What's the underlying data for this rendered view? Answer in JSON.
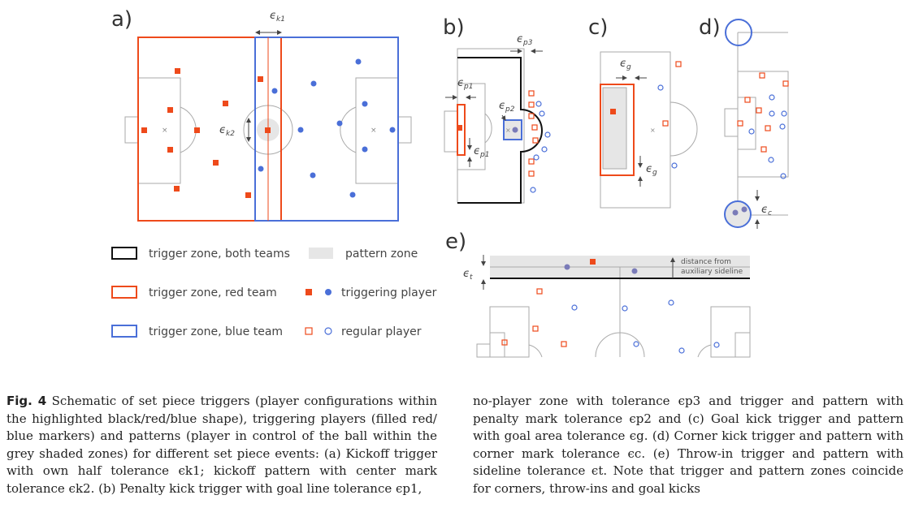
{
  "figure": {
    "panel_labels": [
      "a)",
      "b)",
      "c)",
      "d)",
      "e)"
    ],
    "tolerances": {
      "k1": "ϵ",
      "k1_sub": "k1",
      "k2": "ϵ",
      "k2_sub": "k2",
      "p1": "ϵ",
      "p1_sub": "p1",
      "p2": "ϵ",
      "p2_sub": "p2",
      "p3": "ϵ",
      "p3_sub": "p3",
      "g": "ϵ",
      "g_sub": "g",
      "c": "ϵ",
      "c_sub": "c",
      "t": "ϵ",
      "t_sub": "t"
    },
    "annotation_distance": [
      "distance from",
      "auxiliary sideline"
    ],
    "legend": {
      "trigger_both": "trigger zone, both teams",
      "trigger_red": "trigger zone, red team",
      "trigger_blue": "trigger zone, blue team",
      "pattern_zone": "pattern zone",
      "triggering_player": "triggering player",
      "regular_player": "regular player"
    },
    "colors": {
      "red": "#ee4a1b",
      "blue": "#4a6fd8",
      "black": "#111111",
      "pattern_grey": "#e6e6e6",
      "pitch_line": "#aaaaaa"
    }
  },
  "caption": {
    "fig_label": "Fig. 4",
    "col1_text": " Schematic of set piece triggers (player configurations within the highlighted black/red/blue shape), triggering players (filled red/ blue markers) and patterns (player in control of the ball within the grey shaded zones) for different set piece events: (a) Kickoff trigger with own half tolerance ϵk1; kickoff pattern with center mark tolerance ϵk2. (b) Penalty kick trigger with goal line tolerance ϵp1,",
    "col2_text": "no-player zone with tolerance ϵp3 and trigger and pattern with penalty mark tolerance ϵp2 and (c) Goal kick trigger and pattern with goal area tolerance ϵg. (d) Corner kick trigger and pattern with corner mark tolerance ϵc. (e) Throw-in trigger and pattern with sideline tolerance ϵt. Note that trigger and pattern zones coincide for corners, throw-ins and goal kicks"
  }
}
